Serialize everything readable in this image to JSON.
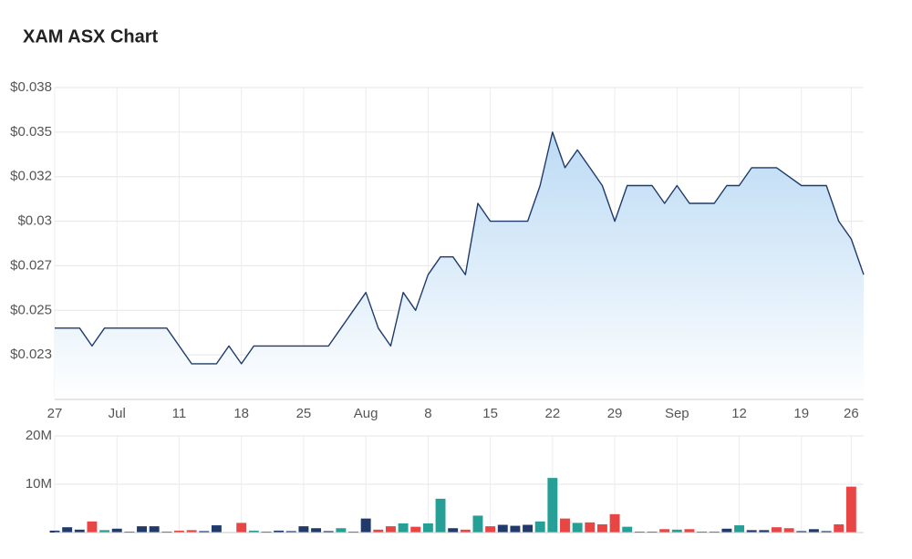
{
  "chart_data": [
    {
      "type": "area",
      "title": "XAM ASX Chart",
      "categories": [
        "27",
        null,
        null,
        null,
        null,
        "Jul",
        null,
        null,
        null,
        null,
        "11",
        null,
        null,
        null,
        null,
        "18",
        null,
        null,
        null,
        null,
        "25",
        null,
        null,
        null,
        null,
        "Aug",
        null,
        null,
        null,
        null,
        "8",
        null,
        null,
        null,
        null,
        "15",
        null,
        null,
        null,
        null,
        "22",
        null,
        null,
        null,
        null,
        "29",
        null,
        null,
        null,
        null,
        "Sep",
        null,
        null,
        null,
        null,
        "12",
        null,
        null,
        null,
        null,
        "19",
        null,
        null,
        null,
        "26",
        null
      ],
      "values": [
        0.024,
        0.024,
        0.024,
        0.023,
        0.024,
        0.024,
        0.024,
        0.024,
        0.024,
        0.024,
        0.023,
        0.022,
        0.022,
        0.022,
        0.023,
        0.022,
        0.023,
        0.023,
        0.023,
        0.023,
        0.023,
        0.023,
        0.023,
        0.024,
        0.025,
        0.026,
        0.024,
        0.023,
        0.026,
        0.025,
        0.027,
        0.028,
        0.028,
        0.027,
        0.031,
        0.03,
        0.03,
        0.03,
        0.03,
        0.032,
        0.035,
        0.033,
        0.034,
        0.033,
        0.032,
        0.03,
        0.032,
        0.032,
        0.032,
        0.031,
        0.032,
        0.031,
        0.031,
        0.031,
        0.032,
        0.032,
        0.033,
        0.033,
        0.033,
        0.0325,
        0.032,
        0.032,
        0.032,
        0.03,
        0.029,
        0.027
      ],
      "color": "#1f3a6b",
      "fill": "#b9d9f4",
      "ylim": [
        0.02,
        0.0375
      ],
      "yticks": [
        {
          "value": 0.0375,
          "label": "$0.038"
        },
        {
          "value": 0.035,
          "label": "$0.035"
        },
        {
          "value": 0.0325,
          "label": "$0.032"
        },
        {
          "value": 0.03,
          "label": "$0.03"
        },
        {
          "value": 0.0275,
          "label": "$0.027"
        },
        {
          "value": 0.025,
          "label": "$0.025"
        },
        {
          "value": 0.0225,
          "label": "$0.023"
        }
      ],
      "grid": true
    },
    {
      "type": "bar",
      "values": [
        400000,
        1100000,
        600000,
        2300000,
        500000,
        800000,
        200000,
        1300000,
        1300000,
        200000,
        400000,
        500000,
        300000,
        1500000,
        100000,
        2000000,
        400000,
        200000,
        400000,
        300000,
        1300000,
        900000,
        300000,
        900000,
        200000,
        2900000,
        600000,
        1300000,
        1900000,
        1200000,
        1900000,
        7000000,
        900000,
        600000,
        3500000,
        1300000,
        1600000,
        1400000,
        1600000,
        2300000,
        11300000,
        2900000,
        2000000,
        2100000,
        1700000,
        3800000,
        1200000,
        200000,
        200000,
        700000,
        600000,
        700000,
        200000,
        200000,
        800000,
        1500000,
        500000,
        500000,
        1100000,
        900000,
        300000,
        700000,
        300000,
        1700000,
        9500000,
        0
      ],
      "colors": [
        "#1f3a6b",
        "#1f3a6b",
        "#1f3a6b",
        "#e84545",
        "#26a096",
        "#1f3a6b",
        "#1f3a6b",
        "#1f3a6b",
        "#1f3a6b",
        "#1f3a6b",
        "#e84545",
        "#e84545",
        "#1f3a6b",
        "#1f3a6b",
        "#1f3a6b",
        "#e84545",
        "#26a096",
        "#1f3a6b",
        "#1f3a6b",
        "#1f3a6b",
        "#1f3a6b",
        "#1f3a6b",
        "#1f3a6b",
        "#26a096",
        "#1f3a6b",
        "#1f3a6b",
        "#e84545",
        "#e84545",
        "#26a096",
        "#e84545",
        "#26a096",
        "#26a096",
        "#1f3a6b",
        "#e84545",
        "#26a096",
        "#e84545",
        "#1f3a6b",
        "#1f3a6b",
        "#1f3a6b",
        "#26a096",
        "#26a096",
        "#e84545",
        "#26a096",
        "#e84545",
        "#e84545",
        "#e84545",
        "#26a096",
        "#1f3a6b",
        "#1f3a6b",
        "#e84545",
        "#26a096",
        "#e84545",
        "#1f3a6b",
        "#1f3a6b",
        "#1f3a6b",
        "#26a096",
        "#1f3a6b",
        "#1f3a6b",
        "#e84545",
        "#e84545",
        "#1f3a6b",
        "#1f3a6b",
        "#1f3a6b",
        "#e84545",
        "#e84545",
        "#1f3a6b"
      ],
      "ylim": [
        0,
        20000000
      ],
      "yticks": [
        {
          "value": 20000000,
          "label": "20M"
        },
        {
          "value": 10000000,
          "label": "10M"
        }
      ],
      "grid": true
    }
  ]
}
